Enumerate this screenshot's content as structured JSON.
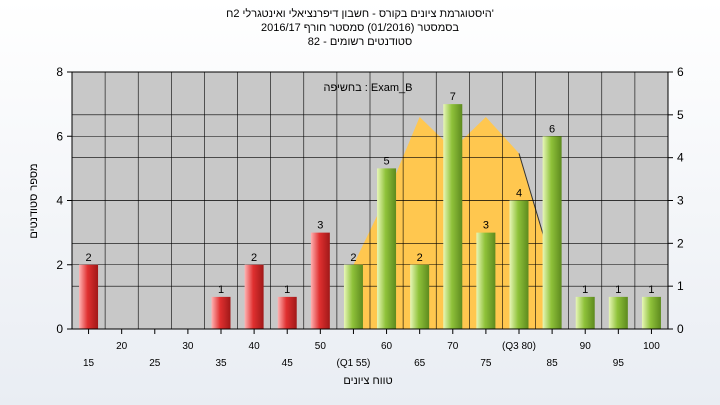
{
  "chart_data": {
    "type": "bar",
    "title_lines": [
      "היסטוגרמת ציונים בקורס - חשבון דיפרנציאלי ואינטגרלי 2ח'",
      "בסמסטר  (01/2016)  סמסטר חורף  2016/17",
      "82 - סטודנטים רשומים"
    ],
    "annotation": "בחשיפה : Exam_B",
    "xlabel": "טווח ציונים",
    "ylabel": "מספר סטודנטים",
    "ylim": [
      0,
      8
    ],
    "y2lim": [
      0,
      6
    ],
    "yticks": [
      0,
      2,
      4,
      6,
      8
    ],
    "y2ticks": [
      0,
      1,
      2,
      3,
      4,
      5,
      6
    ],
    "grid": true,
    "categories": [
      15,
      20,
      25,
      30,
      35,
      40,
      45,
      50,
      55,
      60,
      65,
      70,
      75,
      80,
      85,
      90,
      95,
      100
    ],
    "x_tick_labels": [
      "15",
      "20",
      "25",
      "30",
      "35",
      "40",
      "45",
      "50",
      "(Q1 55)",
      "60",
      "65",
      "70",
      "75",
      "(Q3 80)",
      "85",
      "90",
      "95",
      "100"
    ],
    "values": [
      2,
      0,
      0,
      0,
      1,
      2,
      1,
      3,
      2,
      5,
      2,
      7,
      3,
      4,
      6,
      1,
      1,
      1
    ],
    "data_labels": [
      "2",
      "",
      "",
      "",
      "1",
      "2",
      "1",
      "3",
      "2",
      "5",
      "2",
      "7",
      "3",
      "4",
      "6",
      "1",
      "1",
      "1"
    ],
    "fail_below": 55,
    "colors": {
      "fail_bar": "#e03030",
      "pass_bar": "#8fc23a",
      "area": "#ffc74f",
      "plot_bg": "#c8c8c8",
      "grid": "#000000",
      "iqr_line": "#333333"
    },
    "iqr_area": {
      "x": [
        55,
        60,
        65,
        70,
        75,
        80,
        85
      ],
      "y2": [
        1.5,
        3.1,
        4.95,
        4.2,
        4.95,
        4.1,
        1.5
      ]
    }
  }
}
